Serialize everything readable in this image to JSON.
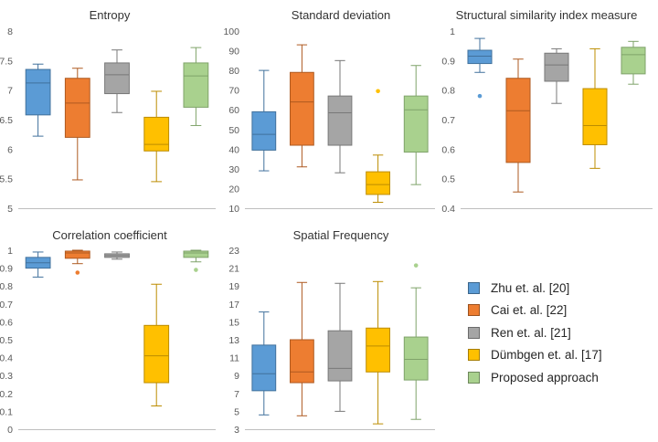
{
  "legend": [
    {
      "label": "Zhu et. al. [20]",
      "color": "#5B9BD5",
      "stroke": "#41719C"
    },
    {
      "label": "Cai et. al. [22]",
      "color": "#ED7D31",
      "stroke": "#AE5A21"
    },
    {
      "label": "Ren et. al. [21]",
      "color": "#A5A5A5",
      "stroke": "#787878"
    },
    {
      "label": "Dümbgen et. al. [17]",
      "color": "#FFC000",
      "stroke": "#BC8C00"
    },
    {
      "label": "Proposed approach",
      "color": "#A9D18E",
      "stroke": "#7FA36A"
    }
  ],
  "chart_data": [
    {
      "type": "box",
      "title": "Entropy",
      "ylim": [
        5,
        8
      ],
      "yticks": [
        "5",
        "5.5",
        "6",
        "6.5",
        "7",
        "7.5",
        "8"
      ],
      "ytick_values": [
        5,
        5.5,
        6,
        6.5,
        7,
        7.5,
        8
      ],
      "series": [
        {
          "name": "Zhu et. al. [20]",
          "min": 6.22,
          "q1": 6.58,
          "median": 7.12,
          "q3": 7.35,
          "max": 7.44,
          "outliers": []
        },
        {
          "name": "Cai et. al. [22]",
          "min": 5.48,
          "q1": 6.2,
          "median": 6.78,
          "q3": 7.2,
          "max": 7.37,
          "outliers": []
        },
        {
          "name": "Ren et. al. [21]",
          "min": 6.62,
          "q1": 6.94,
          "median": 7.26,
          "q3": 7.46,
          "max": 7.68,
          "outliers": []
        },
        {
          "name": "Dümbgen et. al. [17]",
          "min": 5.45,
          "q1": 5.97,
          "median": 6.08,
          "q3": 6.54,
          "max": 6.98,
          "outliers": []
        },
        {
          "name": "Proposed approach",
          "min": 6.4,
          "q1": 6.71,
          "median": 7.24,
          "q3": 7.46,
          "max": 7.72,
          "outliers": []
        }
      ]
    },
    {
      "type": "box",
      "title": "Standard deviation",
      "ylim": [
        10,
        100
      ],
      "yticks": [
        "10",
        "20",
        "30",
        "40",
        "50",
        "60",
        "70",
        "80",
        "90",
        "100"
      ],
      "ytick_values": [
        10,
        20,
        30,
        40,
        50,
        60,
        70,
        80,
        90,
        100
      ],
      "series": [
        {
          "name": "Zhu et. al. [20]",
          "min": 29,
          "q1": 39.5,
          "median": 47.5,
          "q3": 59,
          "max": 80,
          "outliers": []
        },
        {
          "name": "Cai et. al. [22]",
          "min": 31,
          "q1": 42,
          "median": 64,
          "q3": 79,
          "max": 93,
          "outliers": []
        },
        {
          "name": "Ren et. al. [21]",
          "min": 28,
          "q1": 42,
          "median": 58.5,
          "q3": 67,
          "max": 85,
          "outliers": []
        },
        {
          "name": "Dümbgen et. al. [17]",
          "min": 13,
          "q1": 17,
          "median": 22,
          "q3": 28.5,
          "max": 37,
          "outliers": [
            69.5
          ]
        },
        {
          "name": "Proposed approach",
          "min": 22,
          "q1": 38.5,
          "median": 60,
          "q3": 67,
          "max": 82.5,
          "outliers": []
        }
      ]
    },
    {
      "type": "box",
      "title": "Structural  similarity index measure",
      "ylim": [
        0.4,
        1
      ],
      "yticks": [
        "0.4",
        "0.5",
        "0.6",
        "0.7",
        "0.8",
        "0.9",
        "1"
      ],
      "ytick_values": [
        0.4,
        0.5,
        0.6,
        0.7,
        0.8,
        0.9,
        1
      ],
      "series": [
        {
          "name": "Zhu et. al. [20]",
          "min": 0.86,
          "q1": 0.89,
          "median": 0.915,
          "q3": 0.935,
          "max": 0.975,
          "outliers": [
            0.78
          ]
        },
        {
          "name": "Cai et. al. [22]",
          "min": 0.455,
          "q1": 0.555,
          "median": 0.73,
          "q3": 0.84,
          "max": 0.905,
          "outliers": []
        },
        {
          "name": "Ren et. al. [21]",
          "min": 0.755,
          "q1": 0.83,
          "median": 0.885,
          "q3": 0.925,
          "max": 0.94,
          "outliers": []
        },
        {
          "name": "Dümbgen et. al. [17]",
          "min": 0.535,
          "q1": 0.615,
          "median": 0.68,
          "q3": 0.805,
          "max": 0.94,
          "outliers": []
        },
        {
          "name": "Proposed approach",
          "min": 0.82,
          "q1": 0.855,
          "median": 0.92,
          "q3": 0.945,
          "max": 0.965,
          "outliers": []
        }
      ]
    },
    {
      "type": "box",
      "title": "Correlation coefficient",
      "ylim": [
        0,
        1
      ],
      "yticks": [
        "0",
        "0.1",
        "0.2",
        "0.3",
        "0.4",
        "0.5",
        "0.6",
        "0.7",
        "0.8",
        "0.9",
        "1"
      ],
      "ytick_values": [
        0,
        0.1,
        0.2,
        0.3,
        0.4,
        0.5,
        0.6,
        0.7,
        0.8,
        0.9,
        1
      ],
      "series": [
        {
          "name": "Zhu et. al. [20]",
          "min": 0.85,
          "q1": 0.9,
          "median": 0.93,
          "q3": 0.96,
          "max": 0.99,
          "outliers": []
        },
        {
          "name": "Cai et. al. [22]",
          "min": 0.925,
          "q1": 0.955,
          "median": 0.985,
          "q3": 0.995,
          "max": 1.0,
          "outliers": [
            0.875
          ]
        },
        {
          "name": "Ren et. al. [21]",
          "min": 0.95,
          "q1": 0.96,
          "median": 0.97,
          "q3": 0.98,
          "max": 0.99,
          "outliers": []
        },
        {
          "name": "Dümbgen et. al. [17]",
          "min": 0.13,
          "q1": 0.26,
          "median": 0.41,
          "q3": 0.58,
          "max": 0.81,
          "outliers": []
        },
        {
          "name": "Proposed approach",
          "min": 0.935,
          "q1": 0.96,
          "median": 0.985,
          "q3": 0.995,
          "max": 1.0,
          "outliers": [
            0.89
          ]
        }
      ]
    },
    {
      "type": "box",
      "title": "Spatial Frequency",
      "ylim": [
        3,
        23
      ],
      "yticks": [
        "3",
        "5",
        "7",
        "9",
        "11",
        "13",
        "15",
        "17",
        "19",
        "21",
        "23"
      ],
      "ytick_values": [
        3,
        5,
        7,
        9,
        11,
        13,
        15,
        17,
        19,
        21,
        23
      ],
      "series": [
        {
          "name": "Zhu et. al. [20]",
          "min": 4.6,
          "q1": 7.3,
          "median": 9.2,
          "q3": 12.4,
          "max": 16.1,
          "outliers": []
        },
        {
          "name": "Cai et. al. [22]",
          "min": 4.5,
          "q1": 8.2,
          "median": 9.4,
          "q3": 13.0,
          "max": 19.4,
          "outliers": []
        },
        {
          "name": "Ren et. al. [21]",
          "min": 5.0,
          "q1": 8.4,
          "median": 9.8,
          "q3": 14.0,
          "max": 19.3,
          "outliers": []
        },
        {
          "name": "Dümbgen et. al. [17]",
          "min": 3.6,
          "q1": 9.4,
          "median": 12.3,
          "q3": 14.3,
          "max": 19.5,
          "outliers": []
        },
        {
          "name": "Proposed approach",
          "min": 4.1,
          "q1": 8.5,
          "median": 10.8,
          "q3": 13.3,
          "max": 18.8,
          "outliers": [
            21.3
          ]
        }
      ]
    }
  ]
}
